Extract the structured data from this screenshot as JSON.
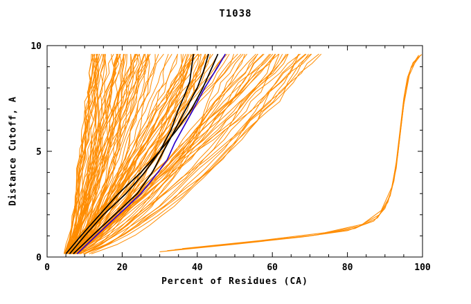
{
  "chart_data": {
    "type": "line",
    "title": "T1038",
    "xlabel": "Percent of Residues (CA)",
    "ylabel": "Distance Cutoff, A",
    "xlim": [
      0,
      100
    ],
    "ylim": [
      0,
      10
    ],
    "x_major_ticks": [
      0,
      20,
      40,
      60,
      80,
      100
    ],
    "x_minor_step": 5,
    "y_major_ticks": [
      0,
      5,
      10
    ],
    "y_minor_step": 1,
    "grid": false,
    "legend": "none",
    "colors": {
      "ensemble": "#ff8c00",
      "highlight": "#000000",
      "reference": "#2a00cc",
      "axis": "#000000",
      "background": "#ffffff"
    },
    "ensemble_band": {
      "description": "dense fan of ~120 model cutoff curves rising from about 5% at cutoff 0 to 12-75% at cutoff 10",
      "count": 120,
      "seed": 12,
      "x_start_range": [
        4,
        7
      ],
      "x_end_range": [
        12,
        75
      ],
      "end_skew": 1.5,
      "shape_exp_range": [
        0.55,
        1.0
      ],
      "wiggle": 1.6,
      "y_start": 0.15,
      "y_end": 9.6,
      "y_step": 0.45
    },
    "series": [
      {
        "name": "black-model-1",
        "color": "#000000",
        "width": 1.7,
        "points": [
          [
            6,
            0.15
          ],
          [
            10,
            1
          ],
          [
            15,
            2
          ],
          [
            21,
            3
          ],
          [
            26,
            4
          ],
          [
            30,
            5
          ],
          [
            33,
            6
          ],
          [
            35,
            7
          ],
          [
            36.5,
            7.6
          ],
          [
            38,
            8.3
          ],
          [
            38.5,
            9
          ],
          [
            39,
            9.6
          ]
        ]
      },
      {
        "name": "black-model-2",
        "color": "#000000",
        "width": 1.7,
        "points": [
          [
            7,
            0.15
          ],
          [
            12,
            1
          ],
          [
            18,
            2
          ],
          [
            24,
            3
          ],
          [
            28,
            4
          ],
          [
            31,
            5
          ],
          [
            34,
            6
          ],
          [
            37,
            7
          ],
          [
            40,
            8
          ],
          [
            41.5,
            8.7
          ],
          [
            42.5,
            9.3
          ],
          [
            43,
            9.6
          ]
        ]
      },
      {
        "name": "black-model-3",
        "color": "#000000",
        "width": 1.7,
        "points": [
          [
            5,
            0.15
          ],
          [
            9,
            1
          ],
          [
            14,
            2
          ],
          [
            19,
            3
          ],
          [
            25,
            4
          ],
          [
            30,
            5
          ],
          [
            34.5,
            6
          ],
          [
            38.5,
            7
          ],
          [
            41.5,
            8
          ],
          [
            44,
            9
          ],
          [
            45.5,
            9.6
          ]
        ]
      },
      {
        "name": "blue-model",
        "color": "#2a00cc",
        "width": 1.7,
        "points": [
          [
            8,
            0.15
          ],
          [
            13,
            1
          ],
          [
            19,
            2
          ],
          [
            25,
            3
          ],
          [
            29.5,
            4
          ],
          [
            32,
            4.6
          ],
          [
            34,
            5.4
          ],
          [
            36.5,
            6.2
          ],
          [
            39,
            7
          ],
          [
            42,
            8
          ],
          [
            45.5,
            9
          ],
          [
            47.5,
            9.6
          ]
        ]
      },
      {
        "name": "right-outlier-1",
        "color": "#ff8c00",
        "width": 1.1,
        "points": [
          [
            30,
            0.25
          ],
          [
            50,
            0.6
          ],
          [
            68,
            0.95
          ],
          [
            80,
            1.25
          ],
          [
            87,
            1.7
          ],
          [
            90,
            2.3
          ],
          [
            91.8,
            3.2
          ],
          [
            93,
            4.5
          ],
          [
            94,
            6
          ],
          [
            95,
            7.5
          ],
          [
            96,
            8.5
          ],
          [
            97.5,
            9.2
          ],
          [
            99.5,
            9.55
          ]
        ]
      },
      {
        "name": "right-outlier-2",
        "color": "#ff8c00",
        "width": 1.1,
        "points": [
          [
            32,
            0.3
          ],
          [
            52,
            0.66
          ],
          [
            70,
            1.0
          ],
          [
            82,
            1.35
          ],
          [
            88,
            1.85
          ],
          [
            90.8,
            2.6
          ],
          [
            92.4,
            3.6
          ],
          [
            93.5,
            5
          ],
          [
            94.5,
            6.5
          ],
          [
            95.5,
            8
          ],
          [
            97,
            9
          ],
          [
            99,
            9.55
          ]
        ]
      },
      {
        "name": "right-outlier-3",
        "color": "#ff8c00",
        "width": 1.1,
        "points": [
          [
            34,
            0.35
          ],
          [
            55,
            0.72
          ],
          [
            72,
            1.05
          ],
          [
            83,
            1.45
          ],
          [
            88.5,
            2.0
          ],
          [
            91.4,
            2.9
          ],
          [
            93,
            4.2
          ],
          [
            94,
            5.8
          ],
          [
            95,
            7.2
          ],
          [
            96.5,
            8.6
          ],
          [
            98.5,
            9.4
          ],
          [
            99.8,
            9.58
          ]
        ]
      },
      {
        "name": "right-outlier-4",
        "color": "#ff8c00",
        "width": 1.1,
        "points": [
          [
            36,
            0.4
          ],
          [
            57,
            0.78
          ],
          [
            74,
            1.15
          ],
          [
            84,
            1.55
          ],
          [
            89,
            2.2
          ],
          [
            91.8,
            3.3
          ],
          [
            93.4,
            4.8
          ],
          [
            94.4,
            6.3
          ],
          [
            95.4,
            7.8
          ],
          [
            96.8,
            8.9
          ],
          [
            99.3,
            9.5
          ]
        ]
      }
    ]
  }
}
